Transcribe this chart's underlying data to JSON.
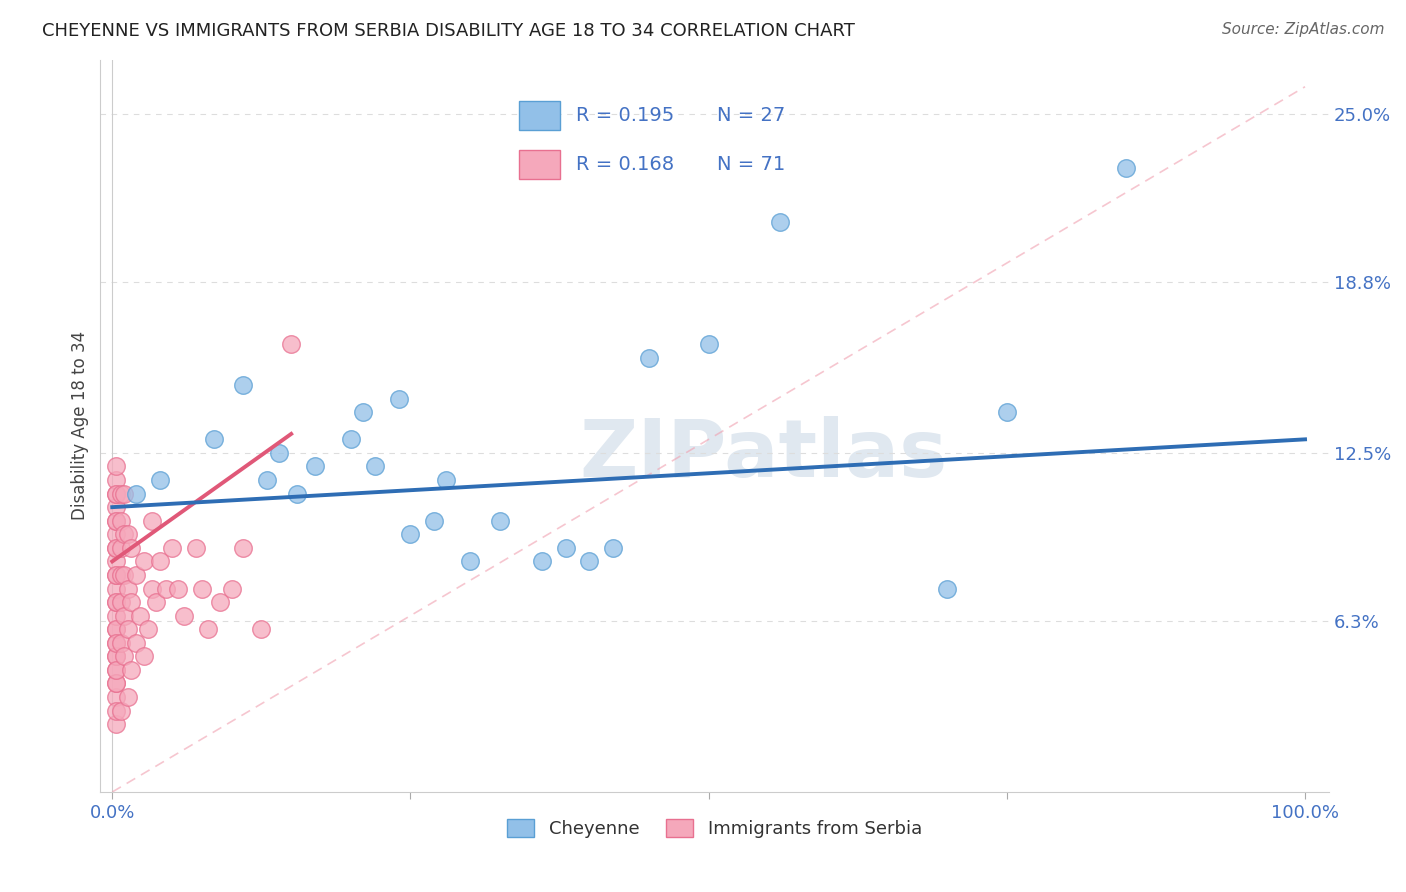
{
  "title": "CHEYENNE VS IMMIGRANTS FROM SERBIA DISABILITY AGE 18 TO 34 CORRELATION CHART",
  "source": "Source: ZipAtlas.com",
  "ylabel": "Disability Age 18 to 34",
  "xlim": [
    -1.0,
    102.0
  ],
  "ylim": [
    0.0,
    27.0
  ],
  "yticks": [
    6.3,
    12.5,
    18.8,
    25.0
  ],
  "ytick_labels": [
    "6.3%",
    "12.5%",
    "18.8%",
    "25.0%"
  ],
  "xtick_labels": [
    "0.0%",
    "100.0%"
  ],
  "xtick_positions": [
    0.0,
    100.0
  ],
  "cheyenne_color": "#92C0E8",
  "cheyenne_edge": "#5A9FD4",
  "serbia_color": "#F5A8BB",
  "serbia_edge": "#E87090",
  "cheyenne_line_color": "#2E6DB4",
  "serbia_line_color": "#E05878",
  "ref_line_color": "#F0A0B0",
  "legend_cheyenne_R": "R = 0.195",
  "legend_cheyenne_N": "N = 27",
  "legend_serbia_R": "R = 0.168",
  "legend_serbia_N": "N = 71",
  "legend_label_cheyenne": "Cheyenne",
  "legend_label_serbia": "Immigrants from Serbia",
  "watermark": "ZIPatlas",
  "cheyenne_x": [
    2.0,
    4.0,
    8.5,
    11.0,
    13.0,
    14.0,
    15.5,
    17.0,
    20.0,
    21.0,
    22.0,
    24.0,
    25.0,
    27.0,
    28.0,
    30.0,
    32.5,
    36.0,
    38.0,
    40.0,
    42.0,
    45.0,
    50.0,
    56.0,
    70.0,
    75.0,
    85.0
  ],
  "cheyenne_y": [
    11.0,
    11.5,
    13.0,
    15.0,
    11.5,
    12.5,
    11.0,
    12.0,
    13.0,
    14.0,
    12.0,
    14.5,
    9.5,
    10.0,
    11.5,
    8.5,
    10.0,
    8.5,
    9.0,
    8.5,
    9.0,
    16.0,
    16.5,
    21.0,
    7.5,
    14.0,
    23.0
  ],
  "serbia_x": [
    0.3,
    0.3,
    0.3,
    0.3,
    0.3,
    0.3,
    0.3,
    0.3,
    0.3,
    0.3,
    0.3,
    0.3,
    0.3,
    0.3,
    0.3,
    0.3,
    0.3,
    0.3,
    0.3,
    0.3,
    0.3,
    0.3,
    0.3,
    0.3,
    0.3,
    0.3,
    0.3,
    0.3,
    0.3,
    0.3,
    0.7,
    0.7,
    0.7,
    0.7,
    0.7,
    0.7,
    0.7,
    1.0,
    1.0,
    1.0,
    1.0,
    1.0,
    1.3,
    1.3,
    1.3,
    1.3,
    1.6,
    1.6,
    1.6,
    2.0,
    2.0,
    2.3,
    2.7,
    2.7,
    3.0,
    3.3,
    3.3,
    3.7,
    4.0,
    4.5,
    5.0,
    5.5,
    6.0,
    7.0,
    7.5,
    8.0,
    9.0,
    10.0,
    11.0,
    12.5,
    15.0
  ],
  "serbia_y": [
    2.5,
    3.5,
    4.0,
    4.5,
    5.0,
    5.5,
    6.0,
    6.5,
    7.0,
    7.5,
    8.0,
    8.5,
    9.0,
    9.5,
    10.0,
    10.5,
    11.0,
    11.5,
    12.0,
    3.0,
    4.0,
    5.0,
    6.0,
    7.0,
    8.0,
    9.0,
    10.0,
    11.0,
    4.5,
    5.5,
    3.0,
    5.5,
    7.0,
    8.0,
    9.0,
    10.0,
    11.0,
    5.0,
    6.5,
    8.0,
    9.5,
    11.0,
    3.5,
    6.0,
    7.5,
    9.5,
    4.5,
    7.0,
    9.0,
    5.5,
    8.0,
    6.5,
    5.0,
    8.5,
    6.0,
    7.5,
    10.0,
    7.0,
    8.5,
    7.5,
    9.0,
    7.5,
    6.5,
    9.0,
    7.5,
    6.0,
    7.0,
    7.5,
    9.0,
    6.0,
    16.5
  ],
  "cheyenne_trend_x": [
    0,
    100
  ],
  "cheyenne_trend_y": [
    10.5,
    13.0
  ],
  "serbia_trend_x": [
    0,
    15
  ],
  "serbia_trend_y": [
    8.5,
    13.2
  ],
  "ref_line_x": [
    0,
    100
  ],
  "ref_line_y": [
    0,
    26.0
  ],
  "grid_color": "#DDDDDD",
  "title_color": "#222222",
  "source_color": "#666666",
  "tick_color": "#4472C4",
  "watermark_color": "#E0E8F0"
}
